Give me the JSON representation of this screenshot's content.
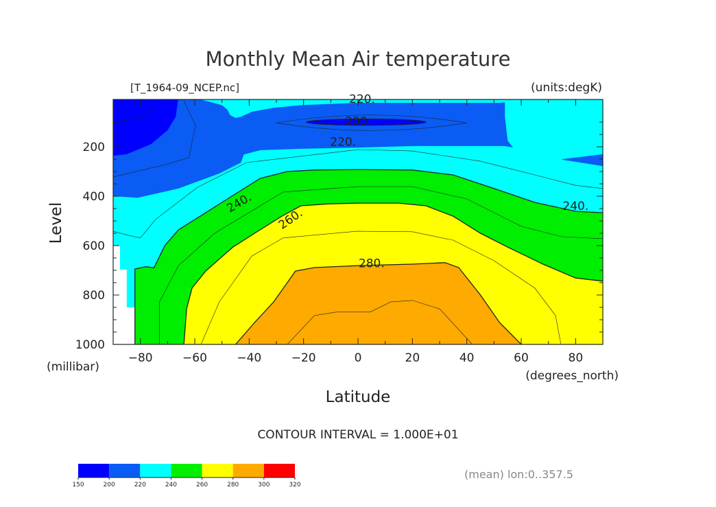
{
  "chart_data": {
    "type": "contour",
    "title": "Monthly Mean Air temperature",
    "subtitle_left": "[T_1964-09_NCEP.nc]",
    "subtitle_right": "(units:degK)",
    "xlabel": "Latitude",
    "xunits": "(degrees_north)",
    "ylabel": "Level",
    "yunits": "(millibar)",
    "xlim": [
      -90,
      90
    ],
    "ylim": [
      1000,
      8
    ],
    "x_ticks": [
      -80,
      -60,
      -40,
      -20,
      0,
      20,
      40,
      60,
      80
    ],
    "x_tick_labels": [
      "−80",
      "−60",
      "−40",
      "−20",
      "0",
      "20",
      "40",
      "60",
      "80"
    ],
    "y_ticks": [
      200,
      400,
      600,
      800,
      1000
    ],
    "y_tick_labels": [
      "200",
      "400",
      "600",
      "800",
      "1000"
    ],
    "contour_interval_text": "CONTOUR INTERVAL = 1.000E+01",
    "footer_note": "(mean) lon:0..357.5",
    "colorbar": {
      "levels": [
        "150",
        "200",
        "220",
        "240",
        "260",
        "280",
        "300",
        "320"
      ],
      "colors": [
        "#0000ff",
        "#0a5cf5",
        "#00ffff",
        "#00ee00",
        "#ffff00",
        "#ffaa00",
        "#ff0000"
      ]
    },
    "background_color": "#00ffff",
    "missing_color": "#ffffff",
    "filled_regions": [
      {
        "name": "below-220",
        "color": "#0a5cf5",
        "points": [
          [
            -90,
            0
          ],
          [
            -90,
            400
          ],
          [
            -81,
            406
          ],
          [
            -66,
            369
          ],
          [
            -51,
            308
          ],
          [
            -43,
            264
          ],
          [
            -42,
            231
          ],
          [
            -36,
            214
          ],
          [
            -21,
            208
          ],
          [
            0,
            203
          ],
          [
            20,
            197
          ],
          [
            45,
            197
          ],
          [
            54,
            197
          ],
          [
            57,
            203
          ],
          [
            55,
            175
          ],
          [
            54,
            78
          ],
          [
            54,
            20
          ],
          [
            52,
            22
          ],
          [
            0,
            22
          ],
          [
            -21,
            31
          ],
          [
            -31,
            42
          ],
          [
            -39,
            58
          ],
          [
            -43,
            78
          ],
          [
            -45,
            83
          ],
          [
            -47,
            72
          ],
          [
            -48,
            50
          ],
          [
            -50,
            31
          ],
          [
            -58,
            8
          ],
          [
            -90,
            0
          ]
        ]
      },
      {
        "name": "below-220-east",
        "color": "#0a5cf5",
        "points": [
          [
            75,
            250
          ],
          [
            90,
            230
          ],
          [
            90,
            278
          ],
          [
            75,
            252
          ]
        ]
      },
      {
        "name": "below-200-polar",
        "color": "#0000ff",
        "points": [
          [
            -90,
            0
          ],
          [
            -90,
            236
          ],
          [
            -85,
            230
          ],
          [
            -76,
            189
          ],
          [
            -70,
            133
          ],
          [
            -67,
            78
          ],
          [
            -66,
            0
          ]
        ]
      },
      {
        "name": "above-240",
        "color": "#00ee00",
        "points": [
          [
            -82,
            1000
          ],
          [
            -82,
            695
          ],
          [
            -78,
            685
          ],
          [
            -75,
            690
          ],
          [
            -71,
            600
          ],
          [
            -66,
            536
          ],
          [
            -56,
            467
          ],
          [
            -48,
            411
          ],
          [
            -36,
            328
          ],
          [
            -26,
            300
          ],
          [
            -16,
            294
          ],
          [
            0,
            292
          ],
          [
            20,
            294
          ],
          [
            35,
            314
          ],
          [
            50,
            369
          ],
          [
            65,
            425
          ],
          [
            80,
            461
          ],
          [
            90,
            467
          ],
          [
            90,
            1000
          ]
        ]
      },
      {
        "name": "above-260",
        "color": "#ffff00",
        "points": [
          [
            -64,
            1000
          ],
          [
            -63,
            856
          ],
          [
            -61,
            772
          ],
          [
            -56,
            703
          ],
          [
            -46,
            606
          ],
          [
            -36,
            536
          ],
          [
            -28,
            481
          ],
          [
            -21,
            439
          ],
          [
            -11,
            431
          ],
          [
            0,
            428
          ],
          [
            15,
            428
          ],
          [
            25,
            439
          ],
          [
            35,
            481
          ],
          [
            45,
            550
          ],
          [
            55,
            606
          ],
          [
            68,
            675
          ],
          [
            80,
            731
          ],
          [
            90,
            744
          ],
          [
            90,
            1000
          ]
        ]
      },
      {
        "name": "above-280",
        "color": "#ffaa00",
        "points": [
          [
            -45,
            1000
          ],
          [
            -38,
            911
          ],
          [
            -31,
            828
          ],
          [
            -23,
            703
          ],
          [
            -16,
            689
          ],
          [
            0,
            681
          ],
          [
            20,
            675
          ],
          [
            32,
            669
          ],
          [
            37,
            689
          ],
          [
            45,
            800
          ],
          [
            52,
            911
          ],
          [
            60,
            1000
          ]
        ]
      },
      {
        "name": "missing",
        "color": "#ffffff",
        "points": [
          [
            -90,
            600
          ],
          [
            -87.5,
            600
          ],
          [
            -87.5,
            697
          ],
          [
            -85,
            697
          ],
          [
            -85,
            850
          ],
          [
            -82,
            850
          ],
          [
            -82,
            1000
          ],
          [
            -90,
            1000
          ]
        ]
      }
    ],
    "below_200_core": {
      "center": [
        3,
        100
      ],
      "half_width_lat": 22,
      "half_height_mb": 13,
      "color": "#0000ff"
    },
    "contour_lines": [
      {
        "level": 240,
        "points": [
          [
            -82,
            1000
          ],
          [
            -82,
            695
          ],
          [
            -78,
            685
          ],
          [
            -75,
            690
          ],
          [
            -71,
            600
          ],
          [
            -66,
            536
          ],
          [
            -56,
            467
          ],
          [
            -48,
            411
          ],
          [
            -36,
            328
          ],
          [
            -26,
            300
          ],
          [
            -16,
            294
          ],
          [
            0,
            292
          ],
          [
            20,
            294
          ],
          [
            35,
            314
          ],
          [
            50,
            369
          ],
          [
            65,
            425
          ],
          [
            80,
            461
          ],
          [
            90,
            467
          ]
        ]
      },
      {
        "level": 260,
        "points": [
          [
            -64,
            1000
          ],
          [
            -63,
            856
          ],
          [
            -61,
            772
          ],
          [
            -56,
            703
          ],
          [
            -46,
            606
          ],
          [
            -36,
            536
          ],
          [
            -28,
            481
          ],
          [
            -21,
            439
          ],
          [
            -11,
            431
          ],
          [
            0,
            428
          ],
          [
            15,
            428
          ],
          [
            25,
            439
          ],
          [
            35,
            481
          ],
          [
            45,
            550
          ],
          [
            55,
            606
          ],
          [
            68,
            675
          ],
          [
            80,
            731
          ],
          [
            90,
            744
          ]
        ]
      },
      {
        "level": 280,
        "points": [
          [
            -45,
            1000
          ],
          [
            -38,
            911
          ],
          [
            -31,
            828
          ],
          [
            -23,
            703
          ],
          [
            -16,
            689
          ],
          [
            0,
            681
          ],
          [
            20,
            675
          ],
          [
            32,
            669
          ],
          [
            37,
            689
          ],
          [
            45,
            800
          ],
          [
            52,
            911
          ],
          [
            60,
            1000
          ]
        ]
      },
      {
        "level": 290,
        "points": [
          [
            -26,
            1000
          ],
          [
            -16,
            883
          ],
          [
            -8,
            869
          ],
          [
            4.5,
            869
          ],
          [
            12,
            828
          ],
          [
            20,
            822
          ],
          [
            30,
            856
          ],
          [
            42,
            1000
          ]
        ]
      },
      {
        "level": 270,
        "points": [
          [
            -57.7,
            1000
          ],
          [
            -51,
            828
          ],
          [
            -39,
            642
          ],
          [
            -27.5,
            569
          ],
          [
            -0.5,
            542
          ],
          [
            20,
            544
          ],
          [
            35,
            578
          ],
          [
            50,
            661
          ],
          [
            65,
            772
          ],
          [
            72.6,
            883
          ],
          [
            74.6,
            1000
          ]
        ]
      },
      {
        "level": 250,
        "points": [
          [
            -73,
            1000
          ],
          [
            -73,
            828
          ],
          [
            -66,
            681
          ],
          [
            -52.7,
            550
          ],
          [
            -27.5,
            383
          ],
          [
            0,
            361
          ],
          [
            20,
            361
          ],
          [
            40,
            411
          ],
          [
            60,
            522
          ],
          [
            75,
            564
          ],
          [
            90,
            572
          ]
        ]
      },
      {
        "level": 230,
        "points": [
          [
            -90,
            542
          ],
          [
            -84.5,
            558
          ],
          [
            -80,
            569
          ],
          [
            -74.4,
            494
          ],
          [
            -59,
            364
          ],
          [
            -41,
            264
          ],
          [
            0,
            211
          ],
          [
            20,
            217
          ],
          [
            45,
            258
          ],
          [
            65,
            314
          ],
          [
            80,
            356
          ],
          [
            90,
            369
          ]
        ]
      },
      {
        "level": 210,
        "points": [
          [
            -90,
            106
          ],
          [
            -76.6,
            69
          ],
          [
            -75.8,
            22
          ]
        ]
      },
      {
        "level": 210,
        "points": [
          [
            -90,
            322
          ],
          [
            -70.8,
            272
          ],
          [
            -62.2,
            244
          ],
          [
            -59.7,
            114
          ],
          [
            -64,
            14
          ]
        ]
      }
    ],
    "contour_labels": [
      {
        "text": "220.",
        "lat": 1.5,
        "level": 22,
        "angle": 0
      },
      {
        "text": "200.",
        "lat": 0,
        "level": 112,
        "angle": 0
      },
      {
        "text": "220.",
        "lat": -5.5,
        "level": 196,
        "angle": 0
      },
      {
        "text": "240.",
        "lat": -43,
        "level": 440,
        "angle": -30
      },
      {
        "text": "260.",
        "lat": -24,
        "level": 505,
        "angle": -35
      },
      {
        "text": "280.",
        "lat": 5,
        "level": 688,
        "angle": 0
      },
      {
        "text": "240.",
        "lat": 80,
        "level": 455,
        "angle": 0
      }
    ]
  }
}
